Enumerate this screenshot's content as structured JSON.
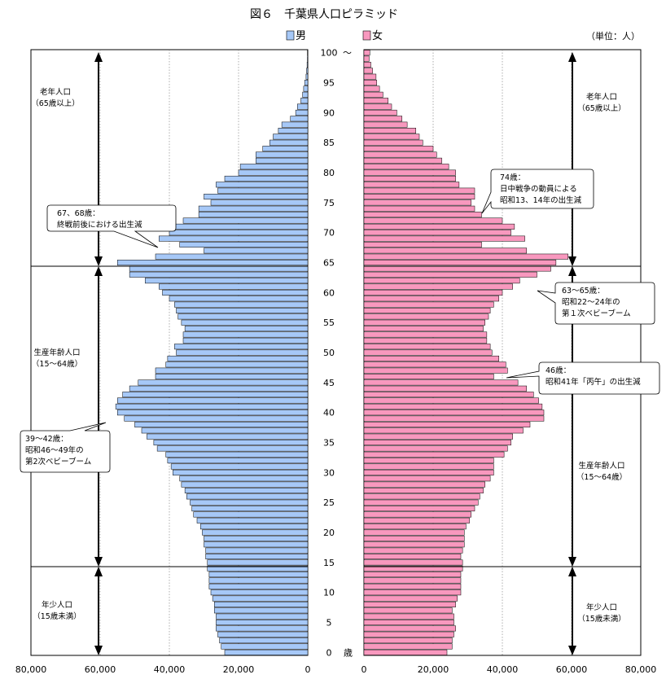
{
  "chart_data": {
    "type": "bar",
    "title": "図６　千葉県人口ピラミッド",
    "unit": "（単位：人）",
    "series": [
      {
        "name": "男",
        "color": "#a6c8f7",
        "values": [
          24000,
          25000,
          25500,
          26000,
          26500,
          26500,
          26500,
          27000,
          27000,
          27500,
          28000,
          28500,
          28500,
          28500,
          29000,
          29000,
          29500,
          29500,
          30000,
          30000,
          30500,
          31000,
          32000,
          33000,
          33500,
          34000,
          35000,
          35500,
          36500,
          37000,
          39000,
          39500,
          40500,
          41000,
          43500,
          44500,
          46500,
          48000,
          50000,
          53000,
          55000,
          55500,
          55000,
          53500,
          51500,
          49000,
          44000,
          44000,
          41000,
          40500,
          38000,
          38500,
          36000,
          36000,
          35500,
          36500,
          37500,
          38000,
          38500,
          40000,
          42000,
          43000,
          47000,
          51500,
          51500,
          55000,
          44000,
          30000,
          37000,
          43000,
          40000,
          41500,
          36000,
          31500,
          31500,
          28000,
          30000,
          26000,
          26500,
          24000,
          20000,
          19500,
          15000,
          15000,
          13000,
          11000,
          10000,
          8500,
          7500,
          5000,
          3500,
          3000,
          2000,
          1500,
          1200,
          900,
          500,
          350,
          200,
          120,
          100
        ]
      },
      {
        "name": "女",
        "color": "#f898be",
        "values": [
          24000,
          25500,
          25500,
          26000,
          26500,
          26000,
          26000,
          25500,
          26500,
          27000,
          28000,
          28000,
          28000,
          28000,
          28500,
          28500,
          28000,
          28500,
          29000,
          29000,
          29000,
          29500,
          30500,
          31000,
          32000,
          33000,
          33500,
          34500,
          35000,
          36500,
          37500,
          37500,
          37500,
          40500,
          41500,
          42500,
          43000,
          46000,
          48000,
          52000,
          52000,
          51500,
          50500,
          49000,
          47000,
          44500,
          37500,
          41500,
          41000,
          39000,
          37000,
          36500,
          35500,
          35500,
          34500,
          35000,
          36000,
          36500,
          37500,
          39000,
          40000,
          43000,
          45000,
          50000,
          54000,
          55500,
          59000,
          47000,
          34000,
          46500,
          42500,
          43500,
          40000,
          34000,
          32000,
          31000,
          32000,
          32000,
          27500,
          26500,
          26500,
          24500,
          22500,
          21000,
          20000,
          17000,
          16000,
          15000,
          12500,
          11000,
          9500,
          8000,
          7000,
          5500,
          4500,
          3700,
          3500,
          2500,
          2000,
          1500,
          1700
        ]
      },
      {
        "label": "age",
        "values": [
          0,
          5,
          10,
          15,
          20,
          25,
          30,
          35,
          40,
          45,
          50,
          55,
          60,
          65,
          70,
          75,
          80,
          85,
          90,
          95,
          100
        ]
      }
    ],
    "x_ticks_male": [
      "80,000",
      "60,000",
      "40,000",
      "20,000",
      "0"
    ],
    "x_ticks_female": [
      "0",
      "20,000",
      "40,000",
      "60,000",
      "80,000"
    ],
    "age_tick_labels": [
      "0",
      "5",
      "10",
      "15",
      "20",
      "25",
      "30",
      "35",
      "40",
      "45",
      "50",
      "55",
      "60",
      "65",
      "70",
      "75",
      "80",
      "85",
      "90",
      "95",
      "100"
    ],
    "age_suffix_bottom": "歳",
    "age_suffix_top": "～",
    "xlim": [
      0,
      80000
    ],
    "ylim": [
      0,
      100
    ],
    "grid": true,
    "sections_left": [
      {
        "name": "老年人口",
        "range": "（65歳以上）"
      },
      {
        "name": "生産年齢人口",
        "range": "（15～64歳）"
      },
      {
        "name": "年少人口",
        "range": "（15歳未満）"
      }
    ],
    "sections_right": [
      {
        "name": "老年人口",
        "range": "（65歳以上）"
      },
      {
        "name": "生産年齢人口",
        "range": "（15～64歳）"
      },
      {
        "name": "年少人口",
        "range": "（15歳未満）"
      }
    ],
    "annotations": [
      {
        "lines": [
          "67、68歳：",
          "終戦前後における出生減"
        ]
      },
      {
        "lines": [
          "39～42歳：",
          "昭和46～49年の",
          "第2次ベビーブーム"
        ]
      },
      {
        "lines": [
          "74歳：",
          "日中戦争の動員による",
          "昭和13、14年の出生減"
        ]
      },
      {
        "lines": [
          "63～65歳：",
          "昭和22～24年の",
          "第１次ベビーブーム"
        ]
      },
      {
        "lines": [
          "46歳：",
          "昭和41年「丙午」の出生減"
        ]
      }
    ]
  }
}
